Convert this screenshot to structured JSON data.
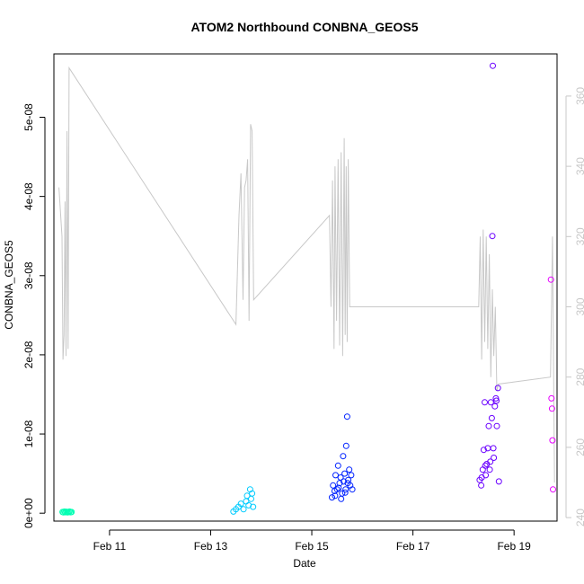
{
  "chart_data": {
    "type": "scatter",
    "title": "ATOM2 Northbound CONBNA_GEOS5",
    "xlabel": "Date",
    "ylabel": "CONBNA_GEOS5",
    "x_ticks": [
      "Feb 11",
      "Feb 13",
      "Feb 15",
      "Feb 17",
      "Feb 19"
    ],
    "y_ticks": [
      "0e+00",
      "1e-08",
      "2e-08",
      "3e-08",
      "4e-08",
      "5e-08"
    ],
    "y2_ticks": [
      "240",
      "260",
      "280",
      "300",
      "320",
      "340",
      "360"
    ],
    "xlim": [
      9.9,
      19.85
    ],
    "ylim": [
      -1e-09,
      5.8e-08
    ],
    "y2lim": [
      239,
      372
    ],
    "grid": false,
    "line_color": "#c8c8c8",
    "series": [
      {
        "color": "#00ffb3",
        "points": [
          [
            10.07,
            1.5e-10
          ],
          [
            10.09,
            1e-10
          ],
          [
            10.11,
            2e-10
          ],
          [
            10.13,
            1.2e-10
          ],
          [
            10.15,
            1.8e-10
          ],
          [
            10.17,
            1e-10
          ],
          [
            10.19,
            1.5e-10
          ],
          [
            10.21,
            2e-10
          ],
          [
            10.23,
            1.2e-10
          ],
          [
            10.25,
            1.5e-10
          ]
        ]
      },
      {
        "color": "#00ccff",
        "points": [
          [
            13.45,
            2e-10
          ],
          [
            13.5,
            5e-10
          ],
          [
            13.55,
            8e-10
          ],
          [
            13.6,
            1.2e-09
          ],
          [
            13.65,
            5e-10
          ],
          [
            13.7,
            1.5e-09
          ],
          [
            13.72,
            2.2e-09
          ],
          [
            13.75,
            1e-09
          ],
          [
            13.78,
            3e-09
          ],
          [
            13.8,
            1.8e-09
          ],
          [
            13.82,
            2.5e-09
          ],
          [
            13.84,
            8e-10
          ]
        ]
      },
      {
        "color": "#0022ff",
        "points": [
          [
            15.4,
            2e-09
          ],
          [
            15.42,
            3.5e-09
          ],
          [
            15.45,
            2.8e-09
          ],
          [
            15.47,
            4.8e-09
          ],
          [
            15.5,
            3e-09
          ],
          [
            15.52,
            6e-09
          ],
          [
            15.55,
            3.8e-09
          ],
          [
            15.57,
            4.5e-09
          ],
          [
            15.6,
            2.5e-09
          ],
          [
            15.62,
            7.2e-09
          ],
          [
            15.63,
            4e-09
          ],
          [
            15.65,
            5e-09
          ],
          [
            15.67,
            3e-09
          ],
          [
            15.68,
            8.5e-09
          ],
          [
            15.7,
            1.22e-08
          ],
          [
            15.72,
            4.2e-09
          ],
          [
            15.74,
            5.5e-09
          ],
          [
            15.76,
            3.5e-09
          ],
          [
            15.78,
            4.8e-09
          ],
          [
            15.8,
            3e-09
          ],
          [
            15.46,
            2.2e-09
          ],
          [
            15.53,
            3.2e-09
          ],
          [
            15.58,
            1.8e-09
          ],
          [
            15.66,
            2.6e-09
          ],
          [
            15.71,
            3.8e-09
          ]
        ]
      },
      {
        "color": "#6a00ff",
        "points": [
          [
            18.32,
            4.2e-09
          ],
          [
            18.35,
            3.5e-09
          ],
          [
            18.38,
            5.5e-09
          ],
          [
            18.4,
            8e-09
          ],
          [
            18.42,
            1.4e-08
          ],
          [
            18.44,
            4.8e-09
          ],
          [
            18.46,
            6.2e-09
          ],
          [
            18.48,
            8.2e-09
          ],
          [
            18.5,
            1.1e-08
          ],
          [
            18.52,
            5.5e-09
          ],
          [
            18.54,
            1.4e-08
          ],
          [
            18.56,
            1.2e-08
          ],
          [
            18.57,
            3.5e-08
          ],
          [
            18.58,
            5.65e-08
          ],
          [
            18.6,
            7e-09
          ],
          [
            18.62,
            1.35e-08
          ],
          [
            18.64,
            1.45e-08
          ],
          [
            18.66,
            1.1e-08
          ],
          [
            18.68,
            1.58e-08
          ],
          [
            18.7,
            4e-09
          ],
          [
            18.36,
            4.5e-09
          ],
          [
            18.43,
            6e-09
          ],
          [
            18.53,
            6.5e-09
          ],
          [
            18.59,
            8.2e-09
          ],
          [
            18.65,
            1.42e-08
          ]
        ]
      },
      {
        "color": "#e600ff",
        "points": [
          [
            19.73,
            2.95e-08
          ],
          [
            19.74,
            1.45e-08
          ],
          [
            19.75,
            1.32e-08
          ],
          [
            19.76,
            9.2e-09
          ],
          [
            19.77,
            3e-09
          ]
        ]
      }
    ],
    "secondary_line": {
      "axis": "right",
      "points": [
        [
          10.0,
          334
        ],
        [
          10.06,
          320
        ],
        [
          10.08,
          285
        ],
        [
          10.1,
          292
        ],
        [
          10.12,
          330
        ],
        [
          10.14,
          286
        ],
        [
          10.16,
          350
        ],
        [
          10.18,
          288
        ],
        [
          10.2,
          368
        ],
        [
          13.5,
          295
        ],
        [
          13.56,
          326
        ],
        [
          13.6,
          338
        ],
        [
          13.64,
          302
        ],
        [
          13.67,
          334
        ],
        [
          13.7,
          336
        ],
        [
          13.73,
          342
        ],
        [
          13.76,
          296
        ],
        [
          13.79,
          352
        ],
        [
          13.82,
          350
        ],
        [
          13.85,
          302
        ],
        [
          15.35,
          326
        ],
        [
          15.38,
          300
        ],
        [
          15.41,
          336
        ],
        [
          15.44,
          288
        ],
        [
          15.46,
          340
        ],
        [
          15.49,
          296
        ],
        [
          15.52,
          342
        ],
        [
          15.55,
          289
        ],
        [
          15.58,
          344
        ],
        [
          15.61,
          286
        ],
        [
          15.64,
          348
        ],
        [
          15.66,
          292
        ],
        [
          15.68,
          340
        ],
        [
          15.7,
          290
        ],
        [
          15.72,
          342
        ],
        [
          15.75,
          300
        ],
        [
          18.3,
          300
        ],
        [
          18.33,
          320
        ],
        [
          18.36,
          285
        ],
        [
          18.39,
          322
        ],
        [
          18.42,
          290
        ],
        [
          18.45,
          320
        ],
        [
          18.48,
          288
        ],
        [
          18.51,
          315
        ],
        [
          18.54,
          280
        ],
        [
          18.57,
          305
        ],
        [
          18.6,
          286
        ],
        [
          18.63,
          300
        ],
        [
          18.66,
          276
        ],
        [
          18.69,
          278
        ],
        [
          19.72,
          280
        ],
        [
          19.76,
          320
        ],
        [
          19.8,
          250
        ]
      ]
    }
  }
}
